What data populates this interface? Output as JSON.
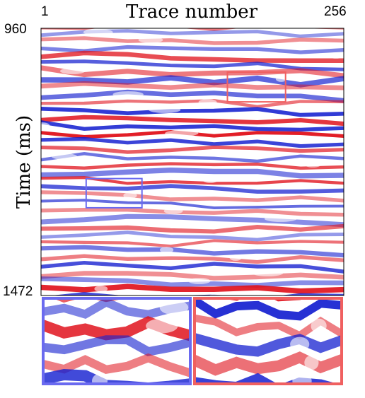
{
  "figure": {
    "x_axis_title": "Trace number",
    "x_tick_min": "1",
    "x_tick_max": "256",
    "y_axis_title": "Time (ms)",
    "y_tick_min": "960",
    "y_tick_max": "1472"
  },
  "colors": {
    "positive": "#e0101a",
    "negative": "#1520d0",
    "zero": "#ffffff",
    "zoom_box_blue": "#6a6af0",
    "zoom_box_red": "#f06060"
  },
  "zoom_regions": [
    {
      "name": "blue",
      "trace_range": [
        39,
        86
      ],
      "time_range": [
        1248,
        1304
      ]
    },
    {
      "name": "red",
      "trace_range": [
        158,
        207
      ],
      "time_range": [
        1044,
        1101
      ]
    }
  ]
}
